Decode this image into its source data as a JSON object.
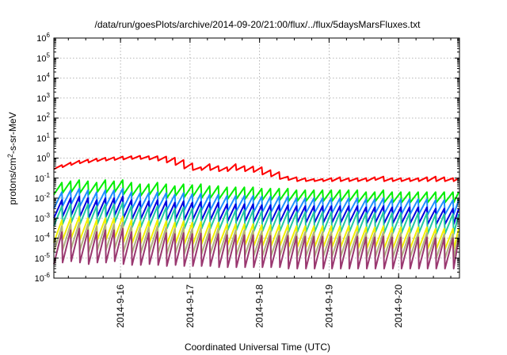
{
  "chart_data": {
    "type": "line",
    "title": "/data/run/goesPlots/archive/2014-09-20/21:00/flux/../flux/5daysMarsFluxes.txt",
    "xlabel": "Coordinated Universal Time (UTC)",
    "ylabel": "protons/cm2-s-sr-MeV",
    "ylabel_parts": {
      "pre": "protons/cm",
      "sup": "2",
      "post": "-s-sr-MeV"
    },
    "y_scale": "log",
    "ylim": [
      1e-06,
      1000000.0
    ],
    "y_ticks": [
      {
        "exp": "-6",
        "value": 1e-06
      },
      {
        "exp": "-5",
        "value": 1e-05
      },
      {
        "exp": "-4",
        "value": 0.0001
      },
      {
        "exp": "-3",
        "value": 0.001
      },
      {
        "exp": "-2",
        "value": 0.01
      },
      {
        "exp": "-1",
        "value": 0.1
      },
      {
        "exp": "0",
        "value": 1
      },
      {
        "exp": "1",
        "value": 10
      },
      {
        "exp": "2",
        "value": 100
      },
      {
        "exp": "3",
        "value": 1000
      },
      {
        "exp": "4",
        "value": 10000
      },
      {
        "exp": "5",
        "value": 100000
      },
      {
        "exp": "6",
        "value": 1000000
      }
    ],
    "y_tick_base": "10",
    "xlim": [
      "2014-09-15 01:00",
      "2014-09-20 21:00"
    ],
    "x_ticks": [
      "2014-9-16",
      "2014-9-17",
      "2014-9-18",
      "2014-9-19",
      "2014-9-20"
    ],
    "grid": true,
    "legend": "none",
    "series": [
      {
        "color": "#ff0000",
        "interval_hours": 3,
        "peaks": [
          0.45,
          0.6,
          0.75,
          0.85,
          0.95,
          1.05,
          1.1,
          1.2,
          1.25,
          1.3,
          1.25,
          1.25,
          1.2,
          1.05,
          0.8,
          0.55,
          0.35,
          0.5,
          0.4,
          0.35,
          0.5,
          0.4,
          0.38,
          0.35,
          0.25,
          0.2,
          0.12,
          0.11,
          0.1,
          0.09,
          0.09,
          0.1,
          0.11,
          0.1,
          0.1,
          0.1,
          0.11,
          0.12,
          0.1,
          0.1,
          0.1,
          0.1,
          0.11,
          0.12,
          0.11,
          0.1,
          0.1
        ],
        "troughs": [
          0.28,
          0.35,
          0.45,
          0.55,
          0.6,
          0.7,
          0.75,
          0.8,
          0.85,
          0.9,
          0.9,
          0.85,
          0.75,
          0.6,
          0.45,
          0.3,
          0.25,
          0.25,
          0.25,
          0.22,
          0.22,
          0.25,
          0.22,
          0.2,
          0.15,
          0.12,
          0.09,
          0.08,
          0.07,
          0.07,
          0.07,
          0.07,
          0.07,
          0.07,
          0.07,
          0.07,
          0.07,
          0.08,
          0.07,
          0.07,
          0.07,
          0.07,
          0.07,
          0.07,
          0.07,
          0.07,
          0.07
        ]
      },
      {
        "color": "#00ee00",
        "interval_hours": 3,
        "peaks": [
          0.06,
          0.07,
          0.08,
          0.07,
          0.06,
          0.08,
          0.07,
          0.08,
          0.06,
          0.05,
          0.05,
          0.06,
          0.05,
          0.04,
          0.05,
          0.045,
          0.05,
          0.04,
          0.04,
          0.035,
          0.035,
          0.035,
          0.035,
          0.03,
          0.03,
          0.03,
          0.03,
          0.025,
          0.025,
          0.025,
          0.025,
          0.025,
          0.025,
          0.025,
          0.025,
          0.02,
          0.02,
          0.025,
          0.02,
          0.02,
          0.02,
          0.02,
          0.02,
          0.02,
          0.02,
          0.02,
          0.02
        ],
        "troughs": [
          0.015,
          0.018,
          0.02,
          0.018,
          0.015,
          0.02,
          0.018,
          0.02,
          0.015,
          0.013,
          0.013,
          0.015,
          0.013,
          0.01,
          0.013,
          0.011,
          0.012,
          0.01,
          0.01,
          0.009,
          0.009,
          0.009,
          0.009,
          0.008,
          0.008,
          0.008,
          0.008,
          0.007,
          0.007,
          0.007,
          0.007,
          0.007,
          0.007,
          0.007,
          0.007,
          0.006,
          0.006,
          0.007,
          0.006,
          0.006,
          0.006,
          0.006,
          0.006,
          0.006,
          0.006,
          0.006,
          0.006
        ]
      },
      {
        "color": "#1e90ff",
        "interval_hours": 3,
        "peaks": [
          0.02,
          0.025,
          0.03,
          0.025,
          0.02,
          0.025,
          0.025,
          0.03,
          0.02,
          0.018,
          0.018,
          0.02,
          0.018,
          0.015,
          0.018,
          0.016,
          0.017,
          0.015,
          0.015,
          0.013,
          0.013,
          0.013,
          0.013,
          0.012,
          0.012,
          0.012,
          0.012,
          0.01,
          0.01,
          0.01,
          0.01,
          0.01,
          0.01,
          0.01,
          0.01,
          0.009,
          0.009,
          0.01,
          0.009,
          0.009,
          0.009,
          0.009,
          0.009,
          0.008,
          0.008,
          0.008,
          0.008
        ],
        "troughs": [
          0.003,
          0.004,
          0.005,
          0.004,
          0.003,
          0.004,
          0.004,
          0.005,
          0.003,
          0.003,
          0.003,
          0.003,
          0.003,
          0.0025,
          0.003,
          0.0025,
          0.0028,
          0.0025,
          0.0025,
          0.0022,
          0.0022,
          0.0022,
          0.0022,
          0.002,
          0.002,
          0.002,
          0.002,
          0.0018,
          0.0018,
          0.0018,
          0.0018,
          0.0018,
          0.0018,
          0.0018,
          0.0018,
          0.0016,
          0.0016,
          0.0018,
          0.0016,
          0.0016,
          0.0016,
          0.0016,
          0.0016,
          0.0015,
          0.0015,
          0.0015,
          0.0015
        ]
      },
      {
        "color": "#0000e0",
        "interval_hours": 3,
        "peaks": [
          0.008,
          0.01,
          0.012,
          0.01,
          0.008,
          0.01,
          0.01,
          0.012,
          0.008,
          0.007,
          0.007,
          0.008,
          0.007,
          0.006,
          0.007,
          0.006,
          0.0065,
          0.006,
          0.006,
          0.005,
          0.005,
          0.005,
          0.005,
          0.0045,
          0.0045,
          0.0045,
          0.0045,
          0.004,
          0.004,
          0.004,
          0.004,
          0.004,
          0.004,
          0.004,
          0.004,
          0.0035,
          0.0035,
          0.004,
          0.0035,
          0.0035,
          0.0035,
          0.0035,
          0.0035,
          0.003,
          0.003,
          0.003,
          0.003
        ],
        "troughs": [
          0.001,
          0.0012,
          0.0014,
          0.0012,
          0.001,
          0.0012,
          0.0012,
          0.0014,
          0.001,
          0.0009,
          0.0009,
          0.001,
          0.0009,
          0.0008,
          0.0009,
          0.0008,
          0.00085,
          0.0008,
          0.0008,
          0.0007,
          0.0007,
          0.0007,
          0.0007,
          0.00065,
          0.00065,
          0.00065,
          0.00065,
          0.0006,
          0.0006,
          0.0006,
          0.0006,
          0.0006,
          0.0006,
          0.0006,
          0.0006,
          0.00055,
          0.00055,
          0.0006,
          0.00055,
          0.00055,
          0.00055,
          0.00055,
          0.00055,
          0.0005,
          0.0005,
          0.0005,
          0.0005
        ]
      },
      {
        "color": "#20c8a0",
        "interval_hours": 3,
        "peaks": [
          0.004,
          0.005,
          0.006,
          0.005,
          0.004,
          0.005,
          0.005,
          0.006,
          0.004,
          0.0035,
          0.0035,
          0.004,
          0.0035,
          0.003,
          0.0035,
          0.003,
          0.0032,
          0.003,
          0.003,
          0.0025,
          0.0025,
          0.0025,
          0.0025,
          0.0022,
          0.0022,
          0.0022,
          0.0022,
          0.002,
          0.002,
          0.002,
          0.002,
          0.002,
          0.002,
          0.002,
          0.002,
          0.0018,
          0.0018,
          0.002,
          0.0018,
          0.0018,
          0.0018,
          0.0018,
          0.0018,
          0.0016,
          0.0016,
          0.0016,
          0.0016
        ],
        "troughs": [
          0.0004,
          0.0005,
          0.0006,
          0.0005,
          0.0004,
          0.0005,
          0.0005,
          0.0006,
          0.0004,
          0.00035,
          0.00035,
          0.0004,
          0.00035,
          0.0003,
          0.00035,
          0.0003,
          0.00032,
          0.0003,
          0.0003,
          0.00025,
          0.00025,
          0.00025,
          0.00025,
          0.00022,
          0.00022,
          0.00022,
          0.00022,
          0.0002,
          0.0002,
          0.0002,
          0.0002,
          0.0002,
          0.0002,
          0.0002,
          0.0002,
          0.00018,
          0.00018,
          0.0002,
          0.00018,
          0.00018,
          0.00018,
          0.00018,
          0.00018,
          0.00016,
          0.00016,
          0.00016,
          0.00016
        ]
      },
      {
        "color": "#f0f000",
        "interval_hours": 3,
        "peaks": [
          0.0008,
          0.001,
          0.0012,
          0.001,
          0.0008,
          0.001,
          0.001,
          0.0012,
          0.0008,
          0.0007,
          0.0007,
          0.0008,
          0.0007,
          0.0006,
          0.0007,
          0.0006,
          0.00065,
          0.0006,
          0.0006,
          0.0005,
          0.0005,
          0.0005,
          0.0005,
          0.00045,
          0.00045,
          0.00045,
          0.00045,
          0.0004,
          0.0004,
          0.0004,
          0.0004,
          0.0004,
          0.0004,
          0.0004,
          0.0004,
          0.00035,
          0.00035,
          0.0004,
          0.00035,
          0.00035,
          0.00035,
          0.00035,
          0.00035,
          0.0003,
          0.0003,
          0.0003,
          0.0003
        ],
        "troughs": [
          6e-05,
          8e-05,
          0.0001,
          8e-05,
          6e-05,
          8e-05,
          8e-05,
          0.0001,
          6e-05,
          5.5e-05,
          5.5e-05,
          6e-05,
          5.5e-05,
          5e-05,
          5.5e-05,
          5e-05,
          5e-05,
          5e-05,
          5e-05,
          4.5e-05,
          4.5e-05,
          4.5e-05,
          4.5e-05,
          4e-05,
          4e-05,
          4e-05,
          4e-05,
          3.5e-05,
          3.5e-05,
          3.5e-05,
          3.5e-05,
          3.5e-05,
          3.5e-05,
          3.5e-05,
          3.5e-05,
          3e-05,
          3e-05,
          3.5e-05,
          3e-05,
          3e-05,
          3e-05,
          3e-05,
          3e-05,
          2.8e-05,
          2.8e-05,
          2.8e-05,
          2.8e-05
        ]
      },
      {
        "color": "#b0b080",
        "interval_hours": 3,
        "peaks": [
          0.0004,
          0.0005,
          0.0006,
          0.0005,
          0.0004,
          0.0005,
          0.0005,
          0.0006,
          0.0004,
          0.00035,
          0.00035,
          0.0004,
          0.00035,
          0.0003,
          0.00035,
          0.0003,
          0.00032,
          0.0003,
          0.0003,
          0.00025,
          0.00025,
          0.00025,
          0.00025,
          0.00022,
          0.00022,
          0.00022,
          0.00022,
          0.0002,
          0.0002,
          0.0002,
          0.0002,
          0.0002,
          0.0002,
          0.0002,
          0.0002,
          0.00018,
          0.00018,
          0.0002,
          0.00018,
          0.00018,
          0.00018,
          0.00018,
          0.00018,
          0.00016,
          0.00016,
          0.00016,
          0.00016
        ],
        "troughs": [
          2e-05,
          2.5e-05,
          3e-05,
          2.5e-05,
          2e-05,
          2.5e-05,
          2.5e-05,
          3e-05,
          2e-05,
          1.8e-05,
          1.8e-05,
          2e-05,
          1.8e-05,
          1.6e-05,
          1.8e-05,
          1.6e-05,
          1.7e-05,
          1.6e-05,
          1.6e-05,
          1.4e-05,
          1.4e-05,
          1.4e-05,
          1.4e-05,
          1.3e-05,
          1.3e-05,
          1.3e-05,
          1.3e-05,
          1.2e-05,
          1.2e-05,
          1.2e-05,
          1.2e-05,
          1.2e-05,
          1.2e-05,
          1.2e-05,
          1.2e-05,
          1.1e-05,
          1.1e-05,
          1.2e-05,
          1.1e-05,
          1.1e-05,
          1.1e-05,
          1.1e-05,
          1.1e-05,
          1e-05,
          1e-05,
          1e-05,
          1e-05
        ]
      },
      {
        "color": "#9a3870",
        "interval_hours": 3,
        "peaks": [
          0.0002,
          0.00025,
          0.0003,
          0.00025,
          0.0002,
          0.00025,
          0.00025,
          0.0003,
          0.0002,
          0.00018,
          0.00018,
          0.0002,
          0.00018,
          0.00016,
          0.00018,
          0.00016,
          0.00017,
          0.00016,
          0.00016,
          0.00014,
          0.00014,
          0.00014,
          0.00014,
          0.00013,
          0.00013,
          0.00013,
          0.00013,
          0.00012,
          0.00012,
          0.00012,
          0.00012,
          0.00012,
          0.00012,
          0.00012,
          0.00012,
          0.00011,
          0.00011,
          0.00012,
          0.00011,
          0.00011,
          0.00011,
          0.00011,
          0.00011,
          0.0001,
          0.0001,
          0.0001,
          0.0001
        ],
        "troughs": [
          5e-06,
          6e-06,
          7e-06,
          6e-06,
          5e-06,
          6e-06,
          6e-06,
          7e-06,
          5e-06,
          4.5e-06,
          4.5e-06,
          5e-06,
          4.5e-06,
          4e-06,
          4.5e-06,
          4e-06,
          4e-06,
          4e-06,
          4e-06,
          3.5e-06,
          3.5e-06,
          3.5e-06,
          3.5e-06,
          3.5e-06,
          3.5e-06,
          3.5e-06,
          3.5e-06,
          3e-06,
          3e-06,
          3e-06,
          3e-06,
          3e-06,
          3e-06,
          3e-06,
          3e-06,
          3e-06,
          3e-06,
          3e-06,
          3e-06,
          3e-06,
          3e-06,
          3e-06,
          3e-06,
          3e-06,
          3e-06,
          3e-06,
          3e-06
        ]
      }
    ]
  }
}
